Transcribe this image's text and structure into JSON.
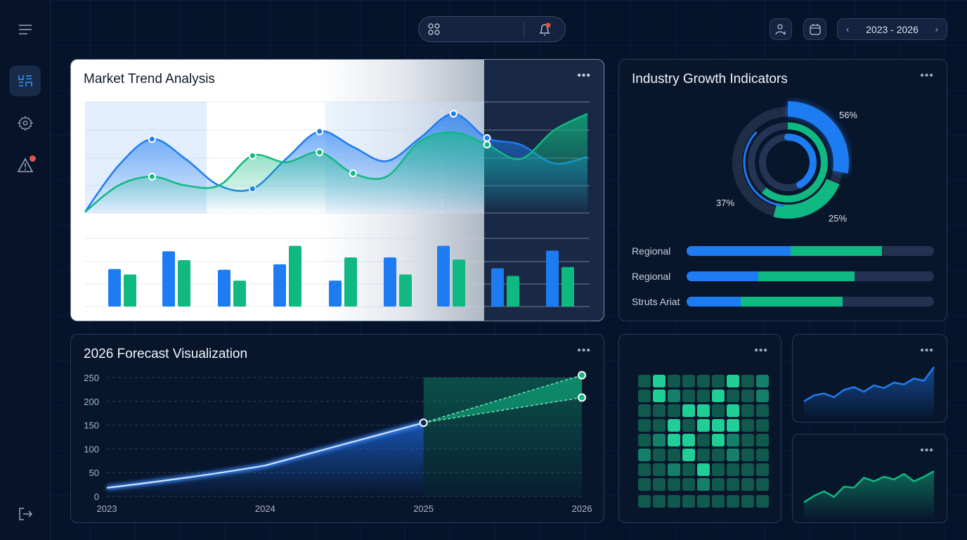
{
  "sidebar": {
    "items": [
      {
        "icon": "menu-icon"
      },
      {
        "icon": "dashboard-icon",
        "active": true
      },
      {
        "icon": "gear-icon"
      },
      {
        "icon": "alert-icon",
        "badge": true
      },
      {
        "icon": "logout-icon"
      }
    ]
  },
  "topbar": {
    "apps_icon": "grid-icon",
    "notifications_icon": "bell-icon",
    "notification_badge": true,
    "user_icon": "user-icon",
    "calendar_icon": "calendar-icon",
    "date_range": "2023 - 2026"
  },
  "colors": {
    "blue": "#1e7cf2",
    "green": "#10b981",
    "background": "#06142b",
    "badge": "#e5534b"
  },
  "market": {
    "title": "Market Trend Analysis"
  },
  "industry": {
    "title": "Industry Growth Indicators",
    "donut_labels": [
      "56%",
      "37%",
      "25%"
    ],
    "bars": [
      {
        "label": "Regional",
        "blue": 42,
        "green": 37
      },
      {
        "label": "Regional",
        "blue": 29,
        "green": 39
      },
      {
        "label": "Struts Ariat",
        "blue": 22,
        "green": 41
      }
    ]
  },
  "forecast": {
    "title": "2026 Forecast Visualization"
  },
  "chart_data": [
    {
      "type": "line",
      "title": "Market Trend Analysis",
      "area": true,
      "ylim": [
        0,
        100
      ],
      "series": [
        {
          "color": "#1e7cf2",
          "values": [
            1,
            43,
            67,
            49,
            25,
            22,
            49,
            74,
            60,
            47,
            68,
            90,
            68,
            62,
            45,
            51
          ],
          "markers": [
            2,
            5,
            7,
            11,
            12
          ]
        },
        {
          "color": "#10b981",
          "values": [
            1,
            25,
            33,
            25,
            25,
            52,
            46,
            55,
            36,
            33,
            65,
            73,
            62,
            49,
            75,
            90
          ],
          "markers": [
            2,
            5,
            7,
            8,
            12
          ]
        }
      ]
    },
    {
      "type": "bar",
      "ylim": [
        0,
        100
      ],
      "series": [
        {
          "color": "#1e7cf2",
          "values": [
            55,
            81,
            54,
            62,
            38,
            72,
            89,
            56,
            82
          ]
        },
        {
          "color": "#10b981",
          "values": [
            47,
            68,
            38,
            89,
            72,
            47,
            69,
            45,
            58
          ]
        }
      ]
    },
    {
      "type": "line",
      "title": "2026 Forecast Visualization",
      "x": [
        "2023",
        "2024",
        "2025",
        "2026"
      ],
      "ylim": [
        0,
        250
      ],
      "yticks": [
        0,
        50,
        100,
        150,
        200,
        250
      ],
      "grid": true,
      "series": [
        {
          "color": "#3b8cff",
          "values": [
            18,
            65,
            155,
            null
          ]
        },
        {
          "color": "#10b981",
          "forecast": true,
          "values": [
            null,
            null,
            155,
            255
          ]
        },
        {
          "color": "#10b981",
          "forecast": true,
          "values": [
            null,
            null,
            155,
            208
          ]
        }
      ]
    },
    {
      "type": "heatmap",
      "levels": [
        [
          0,
          3,
          0,
          0,
          0,
          0,
          3,
          0,
          1
        ],
        [
          0,
          3,
          1,
          0,
          0,
          3,
          0,
          0,
          1
        ],
        [
          0,
          0,
          0,
          3,
          3,
          0,
          3,
          0,
          0
        ],
        [
          0,
          0,
          3,
          0,
          3,
          3,
          3,
          0,
          0
        ],
        [
          0,
          1,
          3,
          3,
          0,
          3,
          1,
          0,
          0
        ],
        [
          1,
          0,
          0,
          3,
          0,
          0,
          1,
          0,
          0
        ],
        [
          0,
          0,
          1,
          0,
          3,
          0,
          0,
          0,
          0
        ],
        [
          0,
          0,
          0,
          0,
          1,
          0,
          0,
          0,
          0
        ],
        [
          0,
          0,
          0,
          0,
          0,
          0,
          0,
          0,
          0
        ]
      ]
    },
    {
      "type": "area",
      "color": "#1e7cf2",
      "values": [
        5,
        18,
        22,
        14,
        30,
        36,
        26,
        40,
        34,
        46,
        42,
        55,
        50,
        80
      ]
    },
    {
      "type": "area",
      "color": "#10b981",
      "values": [
        4,
        18,
        28,
        16,
        38,
        36,
        58,
        50,
        60,
        54,
        66,
        50,
        60,
        72
      ]
    }
  ]
}
